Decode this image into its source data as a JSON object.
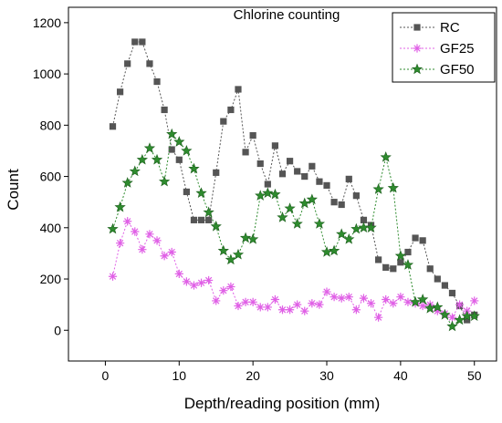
{
  "chart_data": {
    "type": "line",
    "title": "Chlorine counting",
    "xlabel": "Depth/reading position (mm)",
    "ylabel": "Count",
    "xlim": [
      -5,
      53
    ],
    "ylim": [
      -120,
      1260
    ],
    "x_ticks": [
      0,
      10,
      20,
      30,
      40,
      50
    ],
    "y_ticks": [
      0,
      200,
      400,
      600,
      800,
      1000,
      1200
    ],
    "grid": false,
    "legend_position": "top-right",
    "series": [
      {
        "name": "RC",
        "color": "#555555",
        "marker": "square",
        "points": [
          [
            1,
            795
          ],
          [
            2,
            930
          ],
          [
            3,
            1040
          ],
          [
            4,
            1125
          ],
          [
            5,
            1125
          ],
          [
            6,
            1040
          ],
          [
            7,
            970
          ],
          [
            8,
            860
          ],
          [
            9,
            705
          ],
          [
            10,
            665
          ],
          [
            11,
            540
          ],
          [
            12,
            430
          ],
          [
            13,
            430
          ],
          [
            14,
            430
          ],
          [
            15,
            615
          ],
          [
            16,
            815
          ],
          [
            17,
            860
          ],
          [
            18,
            940
          ],
          [
            19,
            695
          ],
          [
            20,
            760
          ],
          [
            21,
            650
          ],
          [
            22,
            570
          ],
          [
            23,
            720
          ],
          [
            24,
            610
          ],
          [
            25,
            660
          ],
          [
            26,
            620
          ],
          [
            27,
            600
          ],
          [
            28,
            640
          ],
          [
            29,
            580
          ],
          [
            30,
            565
          ],
          [
            31,
            500
          ],
          [
            32,
            490
          ],
          [
            33,
            590
          ],
          [
            34,
            525
          ],
          [
            35,
            430
          ],
          [
            36,
            410
          ],
          [
            37,
            275
          ],
          [
            38,
            245
          ],
          [
            39,
            240
          ],
          [
            40,
            265
          ],
          [
            41,
            305
          ],
          [
            42,
            360
          ],
          [
            43,
            350
          ],
          [
            44,
            240
          ],
          [
            45,
            200
          ],
          [
            46,
            175
          ],
          [
            47,
            145
          ],
          [
            48,
            95
          ],
          [
            49,
            40
          ],
          [
            50,
            60
          ]
        ]
      },
      {
        "name": "GF25",
        "color": "#e060e6",
        "marker": "asterisk",
        "points": [
          [
            1,
            210
          ],
          [
            2,
            340
          ],
          [
            3,
            425
          ],
          [
            4,
            385
          ],
          [
            5,
            315
          ],
          [
            6,
            375
          ],
          [
            7,
            350
          ],
          [
            8,
            290
          ],
          [
            9,
            305
          ],
          [
            10,
            220
          ],
          [
            11,
            190
          ],
          [
            12,
            175
          ],
          [
            13,
            185
          ],
          [
            14,
            195
          ],
          [
            15,
            115
          ],
          [
            16,
            155
          ],
          [
            17,
            170
          ],
          [
            18,
            95
          ],
          [
            19,
            110
          ],
          [
            20,
            110
          ],
          [
            21,
            90
          ],
          [
            22,
            90
          ],
          [
            23,
            120
          ],
          [
            24,
            80
          ],
          [
            25,
            80
          ],
          [
            26,
            100
          ],
          [
            27,
            75
          ],
          [
            28,
            105
          ],
          [
            29,
            100
          ],
          [
            30,
            150
          ],
          [
            31,
            130
          ],
          [
            32,
            125
          ],
          [
            33,
            130
          ],
          [
            34,
            80
          ],
          [
            35,
            125
          ],
          [
            36,
            105
          ],
          [
            37,
            50
          ],
          [
            38,
            120
          ],
          [
            39,
            105
          ],
          [
            40,
            130
          ],
          [
            41,
            110
          ],
          [
            42,
            105
          ],
          [
            43,
            95
          ],
          [
            44,
            100
          ],
          [
            45,
            75
          ],
          [
            46,
            65
          ],
          [
            47,
            50
          ],
          [
            48,
            100
          ],
          [
            49,
            75
          ],
          [
            50,
            115
          ]
        ]
      },
      {
        "name": "GF50",
        "color": "#2e8b2e",
        "marker": "star",
        "points": [
          [
            1,
            395
          ],
          [
            2,
            480
          ],
          [
            3,
            575
          ],
          [
            4,
            620
          ],
          [
            5,
            665
          ],
          [
            6,
            710
          ],
          [
            7,
            665
          ],
          [
            8,
            580
          ],
          [
            9,
            765
          ],
          [
            10,
            735
          ],
          [
            11,
            700
          ],
          [
            12,
            630
          ],
          [
            13,
            535
          ],
          [
            14,
            460
          ],
          [
            15,
            405
          ],
          [
            16,
            310
          ],
          [
            17,
            275
          ],
          [
            18,
            295
          ],
          [
            19,
            360
          ],
          [
            20,
            355
          ],
          [
            21,
            525
          ],
          [
            22,
            535
          ],
          [
            23,
            530
          ],
          [
            24,
            440
          ],
          [
            25,
            475
          ],
          [
            26,
            415
          ],
          [
            27,
            495
          ],
          [
            28,
            510
          ],
          [
            29,
            415
          ],
          [
            30,
            305
          ],
          [
            31,
            310
          ],
          [
            32,
            375
          ],
          [
            33,
            355
          ],
          [
            34,
            395
          ],
          [
            35,
            400
          ],
          [
            36,
            400
          ],
          [
            37,
            550
          ],
          [
            38,
            675
          ],
          [
            39,
            555
          ],
          [
            40,
            290
          ],
          [
            41,
            255
          ],
          [
            42,
            110
          ],
          [
            43,
            120
          ],
          [
            44,
            85
          ],
          [
            45,
            90
          ],
          [
            46,
            60
          ],
          [
            47,
            15
          ],
          [
            48,
            40
          ],
          [
            49,
            55
          ],
          [
            50,
            55
          ]
        ]
      }
    ]
  }
}
